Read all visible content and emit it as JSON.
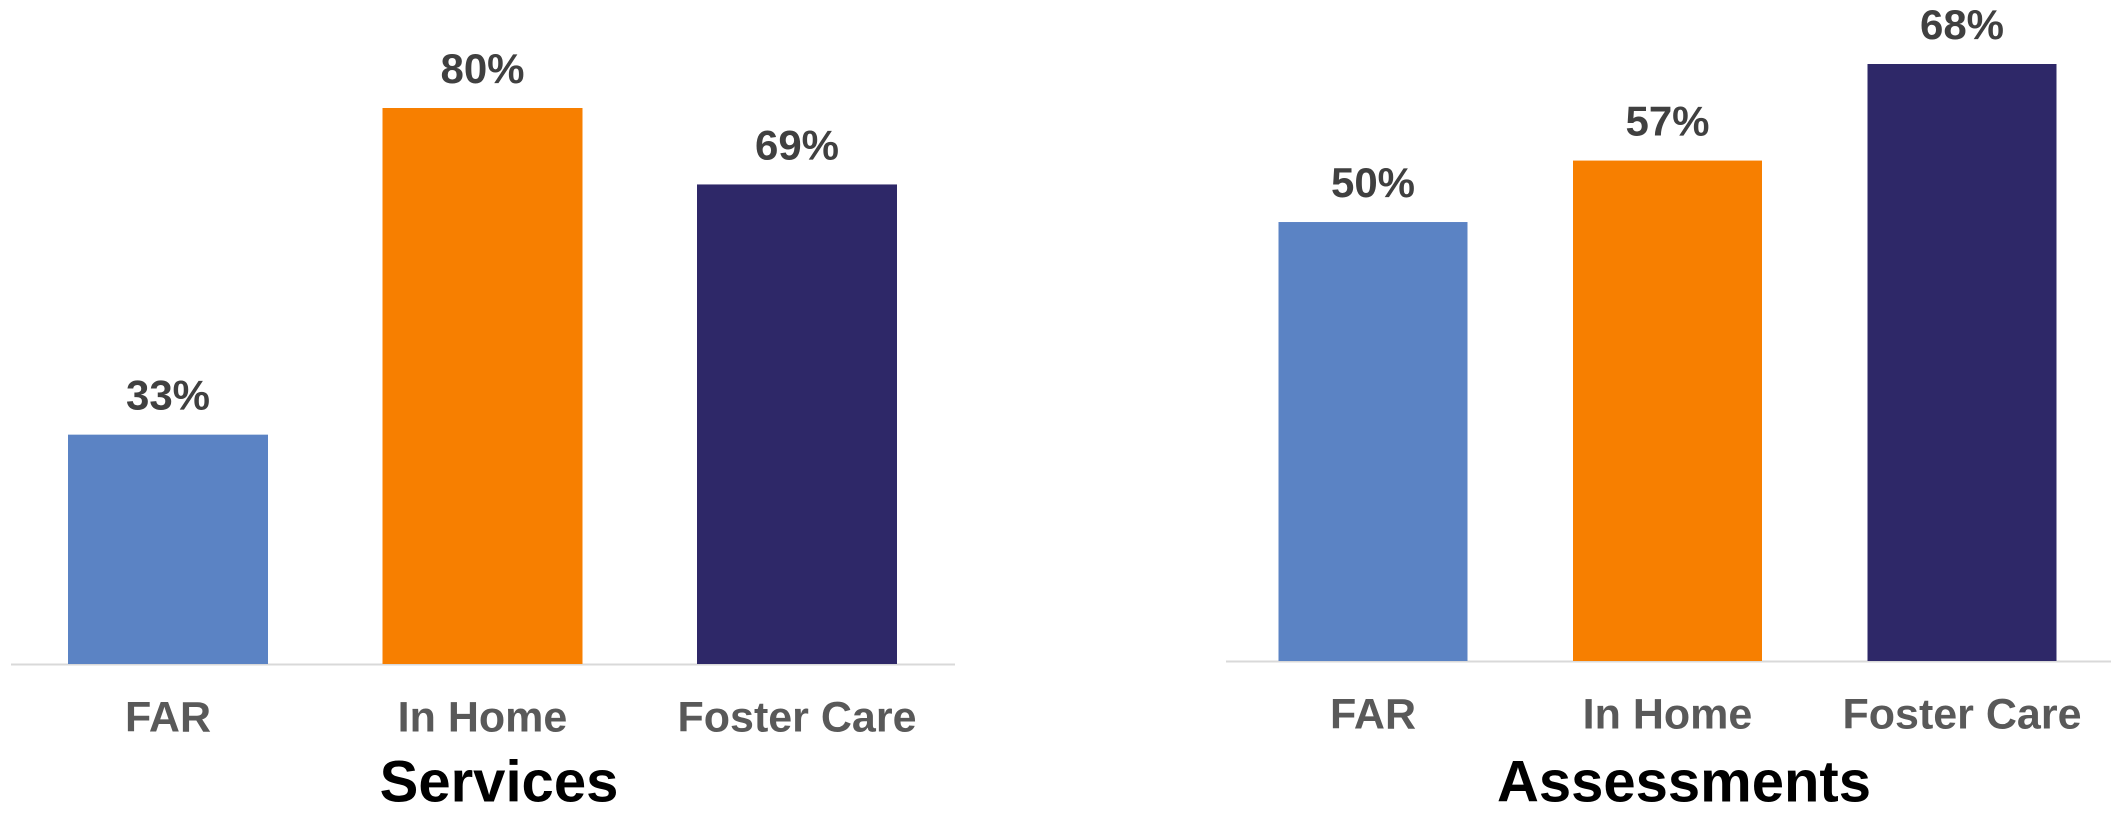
{
  "chart_data": [
    {
      "type": "bar",
      "title": "Services",
      "categories": [
        "FAR",
        "In Home",
        "Foster Care"
      ],
      "values": [
        33,
        80,
        69
      ],
      "value_labels": [
        "33%",
        "80%",
        "69%"
      ],
      "colors": [
        "#5b83c4",
        "#f77f00",
        "#2e2868"
      ]
    },
    {
      "type": "bar",
      "title": "Assessments",
      "categories": [
        "FAR",
        "In Home",
        "Foster Care"
      ],
      "values": [
        50,
        57,
        68
      ],
      "value_labels": [
        "50%",
        "57%",
        "68%"
      ],
      "colors": [
        "#5b83c4",
        "#f77f00",
        "#2e2868"
      ]
    }
  ]
}
